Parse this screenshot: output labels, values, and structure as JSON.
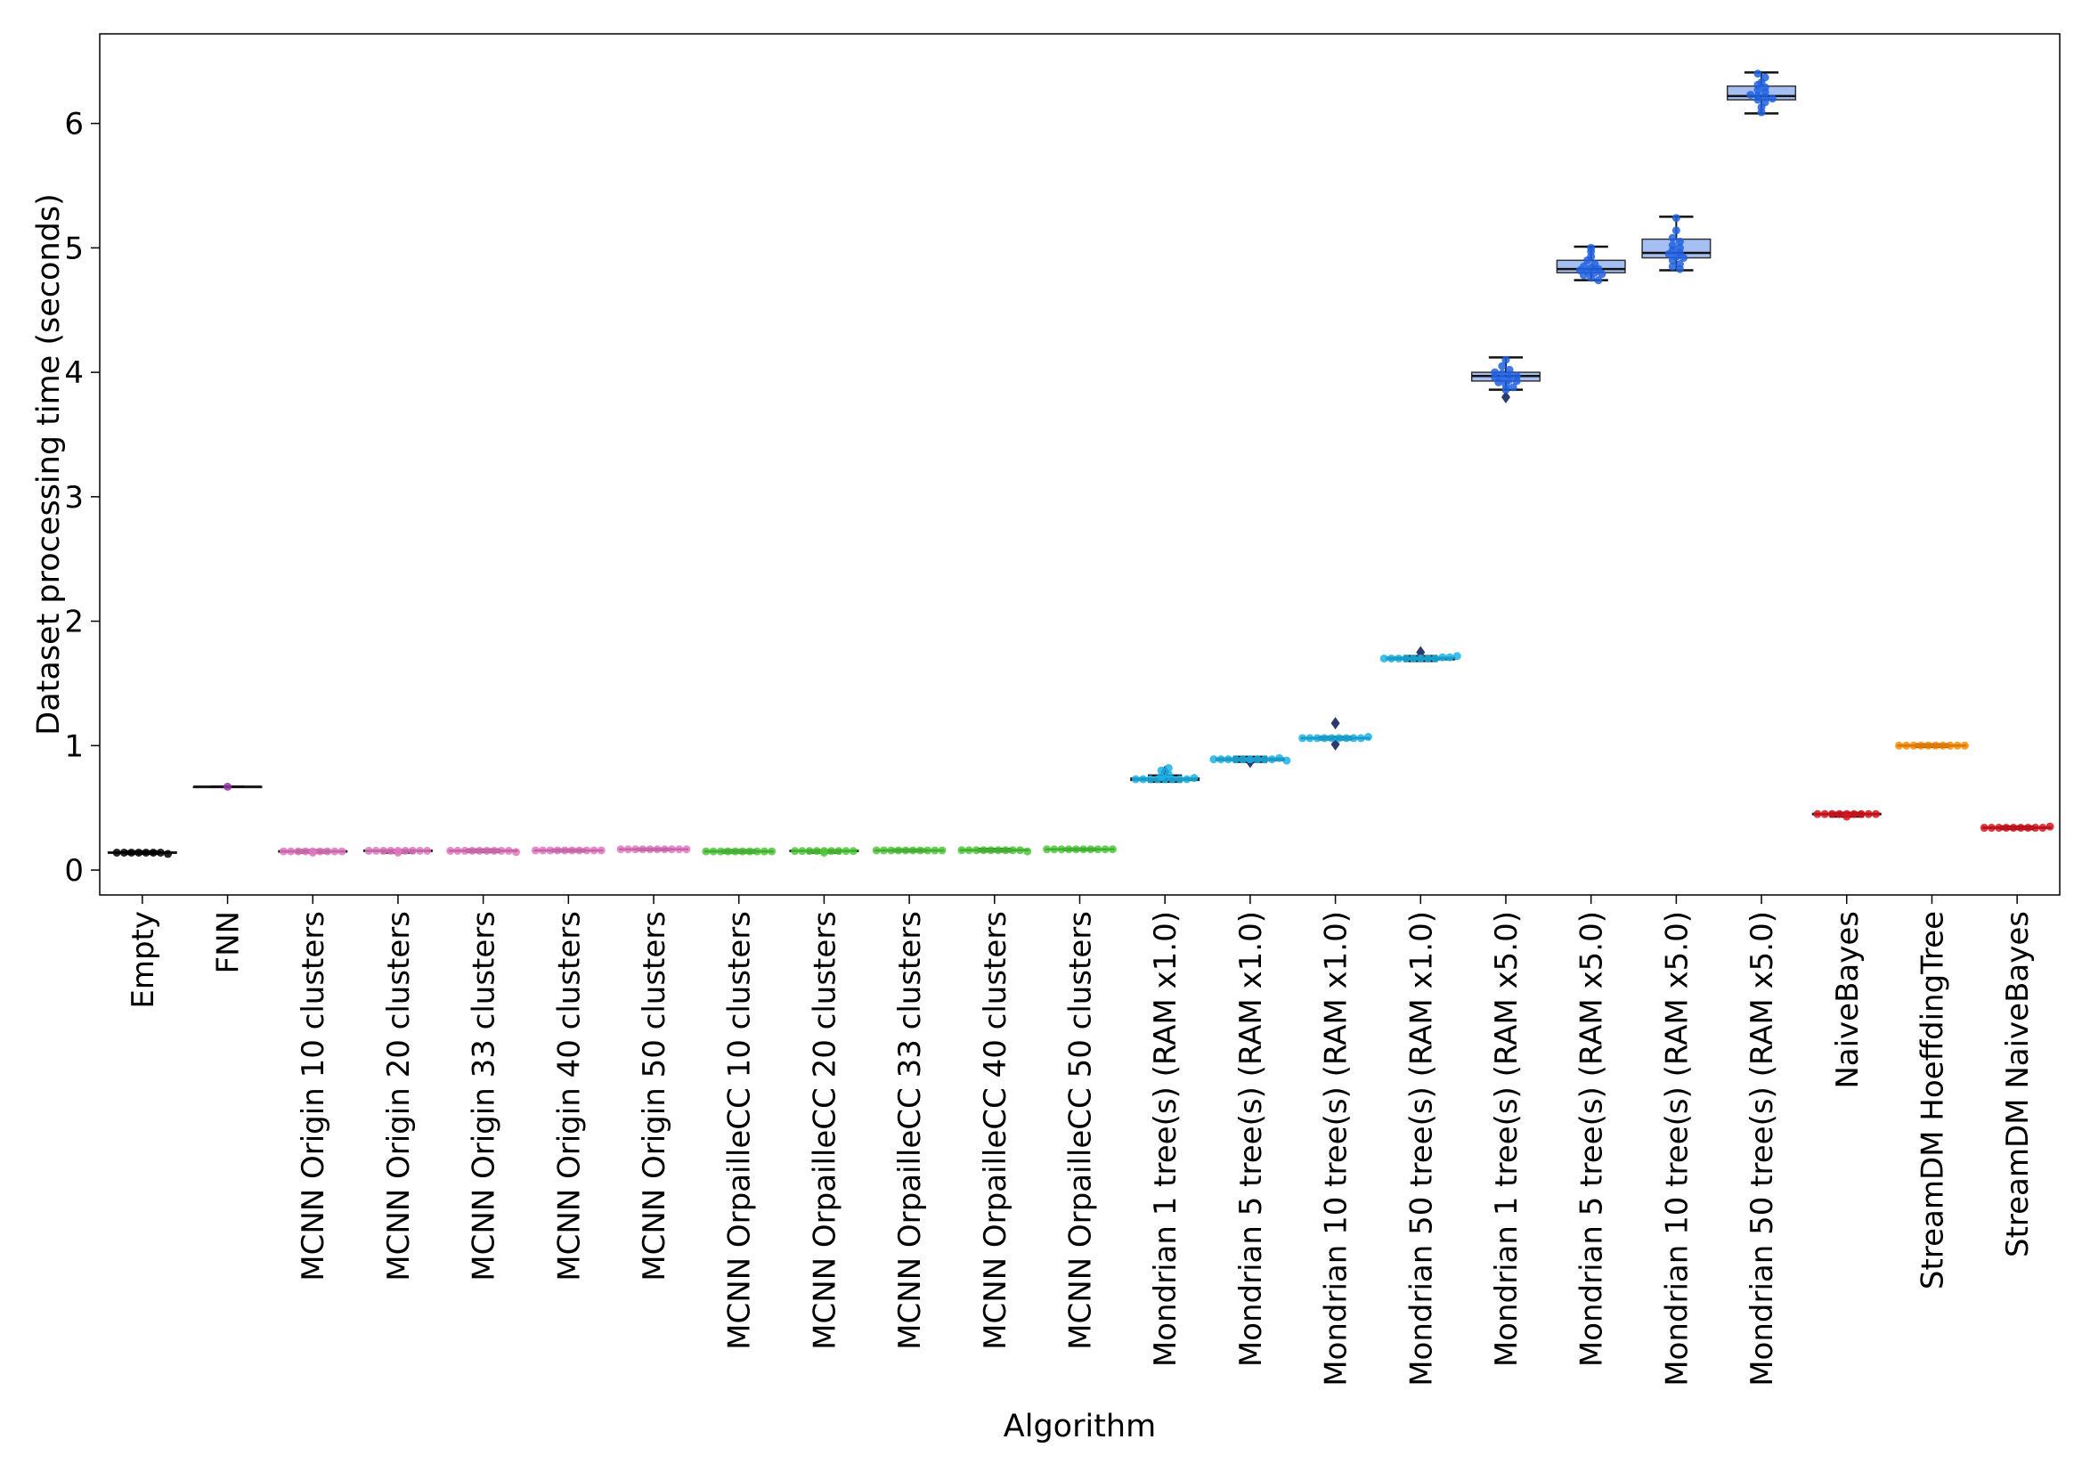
{
  "chart_data": {
    "type": "box",
    "title": "",
    "xlabel": "Algorithm",
    "ylabel": "Dataset processing time (seconds)",
    "ylim": [
      -0.2,
      6.72
    ],
    "yticks": [
      0,
      1,
      2,
      3,
      4,
      5,
      6
    ],
    "grid": false,
    "legend": "none",
    "series": [
      {
        "category": "Empty",
        "color": "#000000",
        "box": {
          "whislo": 0.13,
          "q1": 0.135,
          "med": 0.14,
          "q3": 0.145,
          "whishi": 0.15
        },
        "points": [
          0.14,
          0.14,
          0.14,
          0.14,
          0.14,
          0.14,
          0.14,
          0.13
        ]
      },
      {
        "category": "FNN",
        "color": "#9b2fae",
        "box": {
          "whislo": 0.67,
          "q1": 0.67,
          "med": 0.67,
          "q3": 0.67,
          "whishi": 0.67
        },
        "points": [
          0.67
        ]
      },
      {
        "category": "MCNN Origin 10 clusters",
        "color": "#e377c2",
        "box": {
          "whislo": 0.14,
          "q1": 0.145,
          "med": 0.15,
          "q3": 0.155,
          "whishi": 0.16
        },
        "points": [
          0.15,
          0.15,
          0.15,
          0.15,
          0.15,
          0.15,
          0.15,
          0.15,
          0.15,
          0.14
        ]
      },
      {
        "category": "MCNN Origin 20 clusters",
        "color": "#e377c2",
        "box": {
          "whislo": 0.14,
          "q1": 0.15,
          "med": 0.155,
          "q3": 0.16,
          "whishi": 0.16
        },
        "points": [
          0.155,
          0.155,
          0.155,
          0.155,
          0.155,
          0.155,
          0.155,
          0.155,
          0.155,
          0.14
        ]
      },
      {
        "category": "MCNN Origin 33 clusters",
        "color": "#e377c2",
        "box": {
          "whislo": 0.145,
          "q1": 0.15,
          "med": 0.155,
          "q3": 0.16,
          "whishi": 0.165
        },
        "points": [
          0.155,
          0.155,
          0.155,
          0.155,
          0.155,
          0.155,
          0.155,
          0.155,
          0.155,
          0.145
        ]
      },
      {
        "category": "MCNN Origin 40 clusters",
        "color": "#e377c2",
        "box": {
          "whislo": 0.15,
          "q1": 0.155,
          "med": 0.158,
          "q3": 0.16,
          "whishi": 0.165
        },
        "points": [
          0.158,
          0.158,
          0.158,
          0.158,
          0.158,
          0.158,
          0.158,
          0.158,
          0.158,
          0.158
        ]
      },
      {
        "category": "MCNN Origin 50 clusters",
        "color": "#e377c2",
        "box": {
          "whislo": 0.16,
          "q1": 0.163,
          "med": 0.167,
          "q3": 0.17,
          "whishi": 0.172
        },
        "points": [
          0.167,
          0.167,
          0.167,
          0.167,
          0.167,
          0.167,
          0.167,
          0.167,
          0.167,
          0.167
        ]
      },
      {
        "category": "MCNN OrpailleCC 10 clusters",
        "color": "#4fc93a",
        "box": {
          "whislo": 0.14,
          "q1": 0.145,
          "med": 0.15,
          "q3": 0.155,
          "whishi": 0.16
        },
        "points": [
          0.15,
          0.15,
          0.15,
          0.15,
          0.15,
          0.15,
          0.15,
          0.15,
          0.15,
          0.15
        ]
      },
      {
        "category": "MCNN OrpailleCC 20 clusters",
        "color": "#4fc93a",
        "box": {
          "whislo": 0.14,
          "q1": 0.15,
          "med": 0.153,
          "q3": 0.158,
          "whishi": 0.16
        },
        "points": [
          0.153,
          0.153,
          0.153,
          0.153,
          0.153,
          0.153,
          0.153,
          0.153,
          0.153,
          0.14
        ]
      },
      {
        "category": "MCNN OrpailleCC 33 clusters",
        "color": "#4fc93a",
        "box": {
          "whislo": 0.15,
          "q1": 0.155,
          "med": 0.158,
          "q3": 0.16,
          "whishi": 0.165
        },
        "points": [
          0.158,
          0.158,
          0.158,
          0.158,
          0.158,
          0.158,
          0.158,
          0.158,
          0.158,
          0.158
        ]
      },
      {
        "category": "MCNN OrpailleCC 40 clusters",
        "color": "#4fc93a",
        "box": {
          "whislo": 0.15,
          "q1": 0.155,
          "med": 0.16,
          "q3": 0.165,
          "whishi": 0.17
        },
        "points": [
          0.16,
          0.16,
          0.16,
          0.16,
          0.16,
          0.16,
          0.16,
          0.16,
          0.16,
          0.15
        ]
      },
      {
        "category": "MCNN OrpailleCC 50 clusters",
        "color": "#4fc93a",
        "box": {
          "whislo": 0.16,
          "q1": 0.163,
          "med": 0.167,
          "q3": 0.17,
          "whishi": 0.172
        },
        "points": [
          0.167,
          0.167,
          0.167,
          0.167,
          0.167,
          0.167,
          0.167,
          0.167,
          0.167,
          0.167
        ]
      },
      {
        "category": "Mondrian 1 tree(s) (RAM x1.0)",
        "color": "#1bb3e8",
        "box": {
          "whislo": 0.71,
          "q1": 0.72,
          "med": 0.73,
          "q3": 0.74,
          "whishi": 0.76
        },
        "points": [
          0.73,
          0.73,
          0.73,
          0.73,
          0.73,
          0.73,
          0.73,
          0.73,
          0.74,
          0.75,
          0.77,
          0.8,
          0.82
        ],
        "fliers": [
          0.79
        ]
      },
      {
        "category": "Mondrian 5 tree(s) (RAM x1.0)",
        "color": "#1bb3e8",
        "box": {
          "whislo": 0.87,
          "q1": 0.88,
          "med": 0.89,
          "q3": 0.9,
          "whishi": 0.91
        },
        "points": [
          0.89,
          0.89,
          0.89,
          0.89,
          0.89,
          0.89,
          0.89,
          0.89,
          0.89,
          0.9,
          0.88
        ],
        "fliers": [
          0.87
        ]
      },
      {
        "category": "Mondrian 10 tree(s) (RAM x1.0)",
        "color": "#1bb3e8",
        "box": {
          "whislo": 1.05,
          "q1": 1.055,
          "med": 1.06,
          "q3": 1.065,
          "whishi": 1.07
        },
        "points": [
          1.06,
          1.06,
          1.06,
          1.06,
          1.06,
          1.06,
          1.06,
          1.06,
          1.06,
          1.07
        ],
        "fliers": [
          1.18,
          1.01
        ]
      },
      {
        "category": "Mondrian 50 tree(s) (RAM x1.0)",
        "color": "#1bb3e8",
        "box": {
          "whislo": 1.68,
          "q1": 1.69,
          "med": 1.7,
          "q3": 1.71,
          "whishi": 1.72
        },
        "points": [
          1.7,
          1.7,
          1.7,
          1.7,
          1.7,
          1.7,
          1.7,
          1.7,
          1.71,
          1.71,
          1.72
        ],
        "fliers": [
          1.75
        ]
      },
      {
        "category": "Mondrian 1 tree(s) (RAM x5.0)",
        "color": "#2060e0",
        "box": {
          "whislo": 3.86,
          "q1": 3.93,
          "med": 3.97,
          "q3": 4.0,
          "whishi": 4.12
        },
        "points": [
          4.1,
          4.05,
          4.02,
          4.0,
          3.99,
          3.98,
          3.97,
          3.96,
          3.95,
          3.94,
          3.93,
          3.92,
          3.9,
          3.88,
          3.86
        ],
        "fliers": [
          3.8
        ]
      },
      {
        "category": "Mondrian 5 tree(s) (RAM x5.0)",
        "color": "#2060e0",
        "box": {
          "whislo": 4.74,
          "q1": 4.8,
          "med": 4.83,
          "q3": 4.9,
          "whishi": 5.01
        },
        "points": [
          5.0,
          4.97,
          4.93,
          4.9,
          4.87,
          4.85,
          4.84,
          4.83,
          4.82,
          4.81,
          4.8,
          4.79,
          4.78,
          4.76,
          4.74
        ]
      },
      {
        "category": "Mondrian 10 tree(s) (RAM x5.0)",
        "color": "#2060e0",
        "box": {
          "whislo": 4.82,
          "q1": 4.92,
          "med": 4.96,
          "q3": 5.07,
          "whishi": 5.25
        },
        "points": [
          5.24,
          5.14,
          5.08,
          5.05,
          5.02,
          5.0,
          4.98,
          4.96,
          4.95,
          4.93,
          4.92,
          4.9,
          4.87,
          4.85,
          4.83
        ]
      },
      {
        "category": "Mondrian 50 tree(s) (RAM x5.0)",
        "color": "#2060e0",
        "box": {
          "whislo": 6.08,
          "q1": 6.19,
          "med": 6.22,
          "q3": 6.3,
          "whishi": 6.41
        },
        "points": [
          6.4,
          6.37,
          6.33,
          6.31,
          6.29,
          6.27,
          6.25,
          6.23,
          6.22,
          6.21,
          6.2,
          6.19,
          6.17,
          6.13,
          6.09
        ]
      },
      {
        "category": "NaiveBayes",
        "color": "#d8141e",
        "box": {
          "whislo": 0.43,
          "q1": 0.445,
          "med": 0.45,
          "q3": 0.455,
          "whishi": 0.46
        },
        "points": [
          0.45,
          0.45,
          0.45,
          0.45,
          0.45,
          0.45,
          0.45,
          0.45,
          0.45,
          0.43
        ]
      },
      {
        "category": "StreamDM HoeffdingTree",
        "color": "#ff8c00",
        "box": {
          "whislo": 0.99,
          "q1": 0.995,
          "med": 1.0,
          "q3": 1.005,
          "whishi": 1.01
        },
        "points": [
          1.0,
          1.0,
          1.0,
          1.0,
          1.0,
          1.0,
          1.0,
          1.0,
          1.0,
          1.0
        ]
      },
      {
        "category": "StreamDM NaiveBayes",
        "color": "#d8141e",
        "box": {
          "whislo": 0.33,
          "q1": 0.335,
          "med": 0.34,
          "q3": 0.345,
          "whishi": 0.35
        },
        "points": [
          0.34,
          0.34,
          0.34,
          0.34,
          0.34,
          0.34,
          0.34,
          0.34,
          0.34,
          0.35
        ]
      }
    ]
  }
}
